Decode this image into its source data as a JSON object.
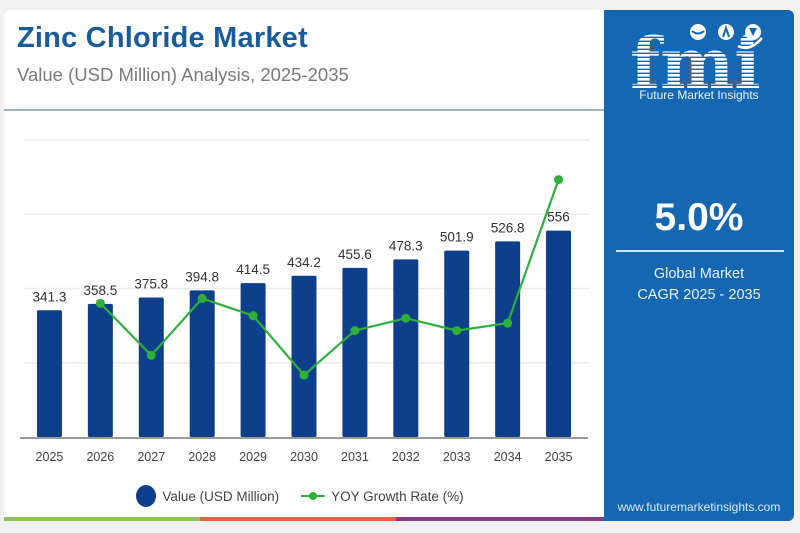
{
  "header": {
    "title": "Zinc Chloride Market",
    "subtitle": "Value (USD Million) Analysis, 2025-2035"
  },
  "colors": {
    "title": "#1a5c9b",
    "bar": "#0d3f8a",
    "line": "#2eb039",
    "panel": "#1467b0",
    "strip": [
      "#8dc15a",
      "#d9663f",
      "#8a3a87"
    ]
  },
  "legend": {
    "items": [
      {
        "label": "Value (USD Million)",
        "icon": "filled-circle"
      },
      {
        "label": "YOY Growth Rate (%)",
        "icon": "line-with-dot"
      }
    ]
  },
  "side_panel": {
    "logo_text": "fmi",
    "logo_tagline": "Future Market Insights",
    "cagr_value": "5.0%",
    "cagr_label_line1": "Global Market",
    "cagr_label_line2": "CAGR 2025 - 2035",
    "website": "www.futuremarketinsights.com"
  },
  "chart_data": {
    "type": "bar",
    "title": "Zinc Chloride Market",
    "subtitle": "Value (USD Million) Analysis, 2025-2035",
    "xlabel": "",
    "ylabel": "",
    "categories": [
      "2025",
      "2026",
      "2027",
      "2028",
      "2029",
      "2030",
      "2031",
      "2032",
      "2033",
      "2034",
      "2035"
    ],
    "series": [
      {
        "name": "Value (USD Million)",
        "type": "bar",
        "values": [
          341.3,
          358.5,
          375.8,
          394.8,
          414.5,
          434.2,
          455.6,
          478.3,
          501.9,
          526.8,
          556
        ],
        "labels": [
          "341.3",
          "358.5",
          "375.8",
          "394.8",
          "414.5",
          "434.2",
          "455.6",
          "478.3",
          "501.9",
          "526.8",
          "556"
        ]
      },
      {
        "name": "YOY Growth Rate (%)",
        "type": "line",
        "axis": "secondary",
        "x": [
          "2026",
          "2027",
          "2028",
          "2029",
          "2030",
          "2031",
          "2032",
          "2033",
          "2034",
          "2035"
        ],
        "values": [
          5.04,
          4.83,
          5.06,
          4.99,
          4.75,
          4.93,
          4.98,
          4.93,
          4.96,
          5.54
        ]
      }
    ],
    "ylim": [
      0,
      800
    ],
    "y_gridlines": [
      200,
      400,
      600,
      800
    ],
    "secondary_ylim": [
      4.5,
      5.7
    ],
    "grid": true,
    "y_tick_labels_visible": false,
    "legend_position": "bottom-center"
  }
}
